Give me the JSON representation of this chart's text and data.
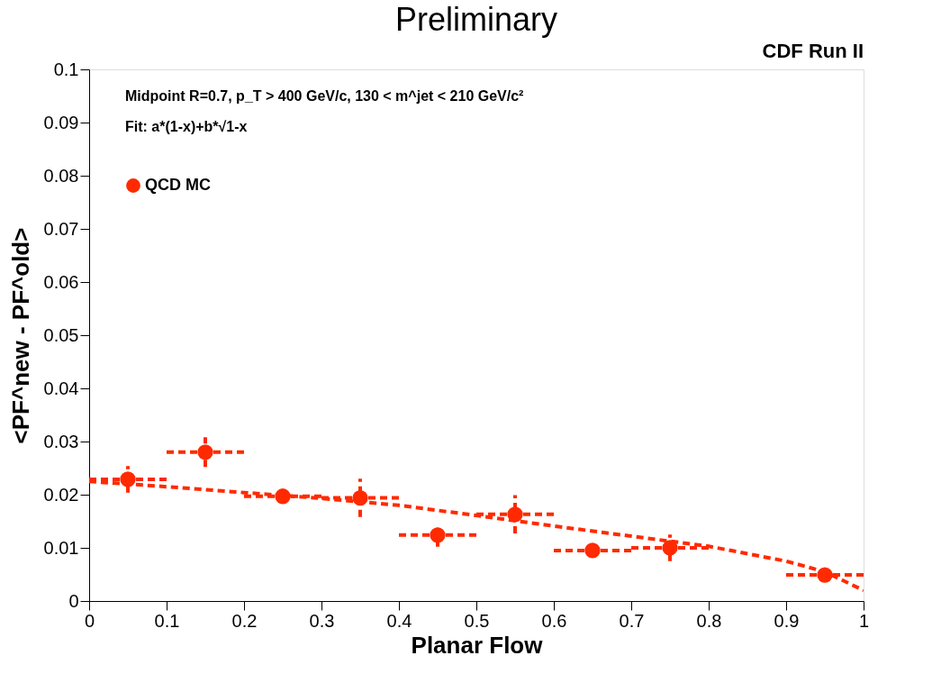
{
  "chart_data": {
    "type": "scatter",
    "title": "Preliminary",
    "xlabel": "Planar Flow",
    "ylabel": "<PF^new - PF^old>",
    "annotations": [
      "CDF Run II",
      "Midpoint R=0.7, p_T > 400 GeV/c, 130 < m^jet < 210 GeV/c²",
      "Fit: a*(1-x)+b*√1-x"
    ],
    "x": [
      0.05,
      0.15,
      0.25,
      0.35,
      0.45,
      0.55,
      0.65,
      0.75,
      0.95
    ],
    "series": [
      {
        "name": "QCD MC",
        "color": "#ff2a00",
        "marker": "circle",
        "values": [
          0.0229,
          0.028,
          0.0197,
          0.0194,
          0.0124,
          0.0163,
          0.0095,
          0.01,
          0.0049
        ],
        "errors": [
          0.0025,
          0.0028,
          0.0013,
          0.0036,
          0.0022,
          0.0036,
          0.001,
          0.0025,
          0.0007
        ],
        "xerrors": [
          0.05,
          0.05,
          0.05,
          0.05,
          0.05,
          0.05,
          0.05,
          0.05,
          0.05
        ],
        "line_style": "dashed"
      },
      {
        "color": "#ff2a00",
        "type": "line",
        "line_style": "dashed",
        "marker": "none",
        "x": [
          0,
          0.1,
          0.2,
          0.3,
          0.4,
          0.5,
          0.6,
          0.7,
          0.8,
          0.9,
          0.95,
          1.0
        ],
        "values": [
          0.0225,
          0.0215,
          0.0204,
          0.0193,
          0.018,
          0.0161,
          0.0141,
          0.0122,
          0.0103,
          0.0075,
          0.0055,
          0.002
        ]
      }
    ],
    "xlim": [
      0,
      1
    ],
    "xticks": [
      0,
      0.1,
      0.2,
      0.3,
      0.4,
      0.5,
      0.6,
      0.7,
      0.8,
      0.9,
      1
    ],
    "ylim": [
      0,
      0.1
    ],
    "yticks": [
      0,
      0.01,
      0.02,
      0.03,
      0.04,
      0.05,
      0.06,
      0.07,
      0.08,
      0.09,
      0.1
    ],
    "grid": false,
    "legend": "top left"
  }
}
